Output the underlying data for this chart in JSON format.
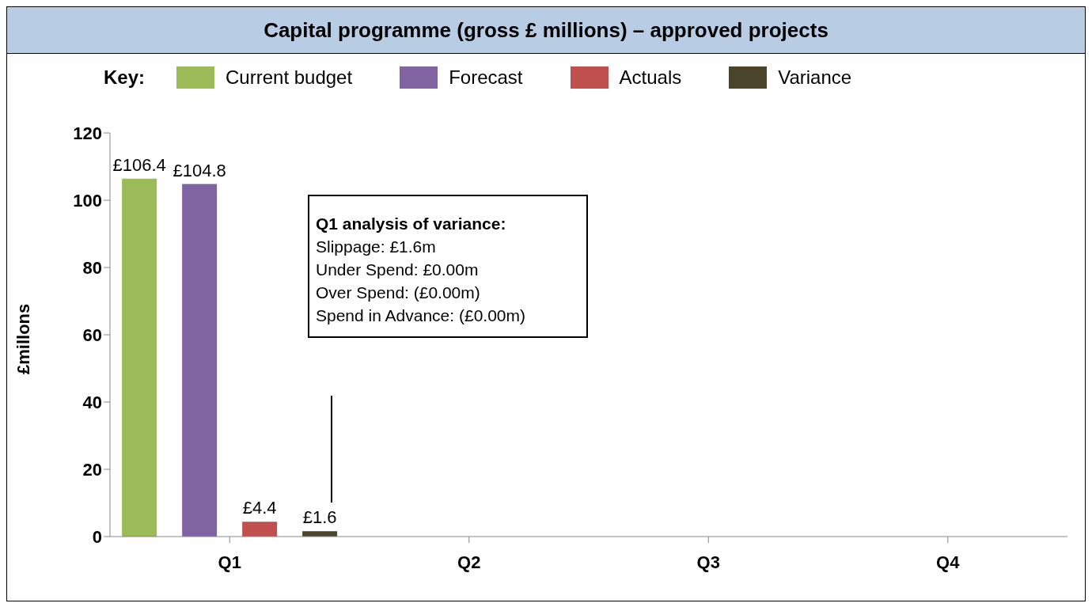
{
  "chart_data": {
    "type": "bar",
    "title": "Capital programme (gross £ millions) – approved projects",
    "categories": [
      "Q1",
      "Q2",
      "Q3",
      "Q4"
    ],
    "series": [
      {
        "name": "Current budget",
        "color": "#9bbb59",
        "values": [
          106.4,
          null,
          null,
          null
        ],
        "value_labels": [
          "£106.4",
          null,
          null,
          null
        ]
      },
      {
        "name": "Forecast",
        "color": "#8064a2",
        "values": [
          104.8,
          null,
          null,
          null
        ],
        "value_labels": [
          "£104.8",
          null,
          null,
          null
        ]
      },
      {
        "name": "Actuals",
        "color": "#c0504d",
        "values": [
          4.4,
          null,
          null,
          null
        ],
        "value_labels": [
          "£4.4",
          null,
          null,
          null
        ]
      },
      {
        "name": "Variance",
        "color": "#4a452a",
        "values": [
          1.6,
          null,
          null,
          null
        ],
        "value_labels": [
          "£1.6",
          null,
          null,
          null
        ]
      }
    ],
    "ylabel": "£millons",
    "legend_title": "Key:",
    "legend": "top",
    "ylim": [
      0,
      120
    ],
    "yticks": [
      0,
      20,
      40,
      60,
      80,
      100,
      120
    ],
    "grid": false,
    "annotations": [
      "Q1 analysis of variance:\nSlippage: £1.6m\nUnder Spend: £0.00m\nOver Spend: (£0.00m)\nSpend in Advance: (£0.00m)"
    ]
  }
}
